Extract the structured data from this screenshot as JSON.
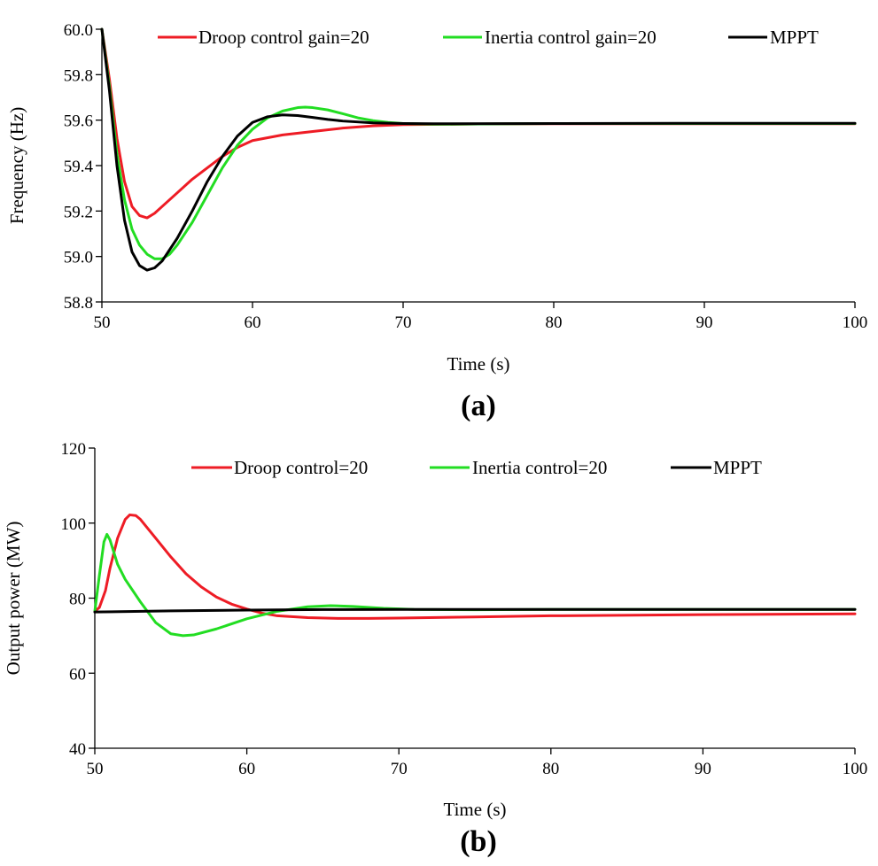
{
  "chart_data": [
    {
      "type": "line",
      "panel_label": "(a)",
      "title": "",
      "xlabel": "Time (s)",
      "ylabel": "Frequency (Hz)",
      "xlim": [
        50,
        100
      ],
      "ylim": [
        58.8,
        60.0
      ],
      "x_ticks": [
        50,
        60,
        70,
        80,
        90,
        100
      ],
      "y_ticks": [
        "58.8",
        "59.0",
        "59.2",
        "59.4",
        "59.6",
        "59.8",
        "60.0"
      ],
      "grid": false,
      "legend_position": "top",
      "series": [
        {
          "name": "Droop control gain=20",
          "color": "#ee1c25",
          "points": [
            [
              50,
              60.0
            ],
            [
              50.5,
              59.78
            ],
            [
              51,
              59.52
            ],
            [
              51.5,
              59.33
            ],
            [
              52,
              59.22
            ],
            [
              52.5,
              59.18
            ],
            [
              53,
              59.17
            ],
            [
              53.5,
              59.19
            ],
            [
              54,
              59.22
            ],
            [
              55,
              59.28
            ],
            [
              56,
              59.34
            ],
            [
              57,
              59.39
            ],
            [
              58,
              59.44
            ],
            [
              59,
              59.48
            ],
            [
              60,
              59.51
            ],
            [
              62,
              59.535
            ],
            [
              64,
              59.55
            ],
            [
              66,
              59.565
            ],
            [
              68,
              59.575
            ],
            [
              70,
              59.58
            ],
            [
              75,
              59.583
            ],
            [
              80,
              59.584
            ],
            [
              90,
              59.584
            ],
            [
              100,
              59.584
            ]
          ]
        },
        {
          "name": "Inertia control gain=20",
          "color": "#22dd22",
          "points": [
            [
              50,
              60.0
            ],
            [
              50.5,
              59.75
            ],
            [
              51,
              59.45
            ],
            [
              51.5,
              59.25
            ],
            [
              52,
              59.12
            ],
            [
              52.5,
              59.05
            ],
            [
              53,
              59.01
            ],
            [
              53.5,
              58.99
            ],
            [
              54,
              58.99
            ],
            [
              54.5,
              59.01
            ],
            [
              55,
              59.05
            ],
            [
              56,
              59.15
            ],
            [
              57,
              59.27
            ],
            [
              58,
              59.39
            ],
            [
              59,
              59.49
            ],
            [
              60,
              59.56
            ],
            [
              61,
              59.61
            ],
            [
              62,
              59.64
            ],
            [
              63,
              59.655
            ],
            [
              63.5,
              59.657
            ],
            [
              64,
              59.655
            ],
            [
              65,
              59.645
            ],
            [
              66,
              59.628
            ],
            [
              67,
              59.61
            ],
            [
              68,
              59.598
            ],
            [
              69,
              59.59
            ],
            [
              70,
              59.585
            ],
            [
              72,
              59.582
            ],
            [
              75,
              59.583
            ],
            [
              80,
              59.585
            ],
            [
              90,
              59.585
            ],
            [
              100,
              59.585
            ]
          ]
        },
        {
          "name": "MPPT",
          "color": "#000000",
          "points": [
            [
              50,
              60.0
            ],
            [
              50.5,
              59.73
            ],
            [
              51,
              59.4
            ],
            [
              51.5,
              59.16
            ],
            [
              52,
              59.02
            ],
            [
              52.5,
              58.96
            ],
            [
              53,
              58.94
            ],
            [
              53.5,
              58.95
            ],
            [
              54,
              58.98
            ],
            [
              55,
              59.08
            ],
            [
              56,
              59.2
            ],
            [
              57,
              59.33
            ],
            [
              58,
              59.44
            ],
            [
              59,
              59.53
            ],
            [
              60,
              59.59
            ],
            [
              61,
              59.615
            ],
            [
              62,
              59.623
            ],
            [
              63,
              59.62
            ],
            [
              64,
              59.612
            ],
            [
              65,
              59.603
            ],
            [
              66,
              59.596
            ],
            [
              68,
              59.588
            ],
            [
              70,
              59.585
            ],
            [
              72,
              59.584
            ],
            [
              80,
              59.585
            ],
            [
              90,
              59.586
            ],
            [
              100,
              59.586
            ]
          ]
        }
      ]
    },
    {
      "type": "line",
      "panel_label": "(b)",
      "title": "",
      "xlabel": "Time (s)",
      "ylabel": "Output power (MW)",
      "xlim": [
        50,
        100
      ],
      "ylim": [
        40,
        120
      ],
      "x_ticks": [
        50,
        60,
        70,
        80,
        90,
        100
      ],
      "y_ticks": [
        "40",
        "60",
        "80",
        "100",
        "120"
      ],
      "grid": false,
      "legend_position": "top",
      "series": [
        {
          "name": "Droop control=20",
          "color": "#ee1c25",
          "points": [
            [
              50,
              76.5
            ],
            [
              50.3,
              77.5
            ],
            [
              50.7,
              82
            ],
            [
              51,
              88
            ],
            [
              51.5,
              96
            ],
            [
              52,
              101
            ],
            [
              52.3,
              102.2
            ],
            [
              52.7,
              102
            ],
            [
              53,
              101
            ],
            [
              54,
              96
            ],
            [
              55,
              91
            ],
            [
              56,
              86.5
            ],
            [
              57,
              83
            ],
            [
              58,
              80.3
            ],
            [
              59,
              78.4
            ],
            [
              60,
              77.1
            ],
            [
              61,
              76
            ],
            [
              62,
              75.3
            ],
            [
              64,
              74.8
            ],
            [
              66,
              74.6
            ],
            [
              68,
              74.6
            ],
            [
              70,
              74.7
            ],
            [
              75,
              75
            ],
            [
              80,
              75.3
            ],
            [
              90,
              75.6
            ],
            [
              100,
              75.8
            ]
          ]
        },
        {
          "name": "Inertia control=20",
          "color": "#22dd22",
          "points": [
            [
              50,
              76.5
            ],
            [
              50.3,
              86
            ],
            [
              50.6,
              95
            ],
            [
              50.8,
              97
            ],
            [
              51,
              95.5
            ],
            [
              51.5,
              89
            ],
            [
              52,
              85
            ],
            [
              53,
              79
            ],
            [
              54,
              73.5
            ],
            [
              55,
              70.5
            ],
            [
              55.8,
              70
            ],
            [
              56.5,
              70.2
            ],
            [
              58,
              71.8
            ],
            [
              60,
              74.5
            ],
            [
              62,
              76.5
            ],
            [
              64,
              77.7
            ],
            [
              65.5,
              78
            ],
            [
              67,
              77.8
            ],
            [
              69,
              77.3
            ],
            [
              71,
              77
            ],
            [
              75,
              76.9
            ],
            [
              80,
              77
            ],
            [
              90,
              77
            ],
            [
              100,
              77
            ]
          ]
        },
        {
          "name": "MPPT",
          "color": "#000000",
          "points": [
            [
              50,
              76.3
            ],
            [
              55,
              76.6
            ],
            [
              60,
              76.8
            ],
            [
              65,
              76.95
            ],
            [
              70,
              77
            ],
            [
              80,
              77
            ],
            [
              90,
              77
            ],
            [
              100,
              77
            ]
          ]
        }
      ]
    }
  ]
}
